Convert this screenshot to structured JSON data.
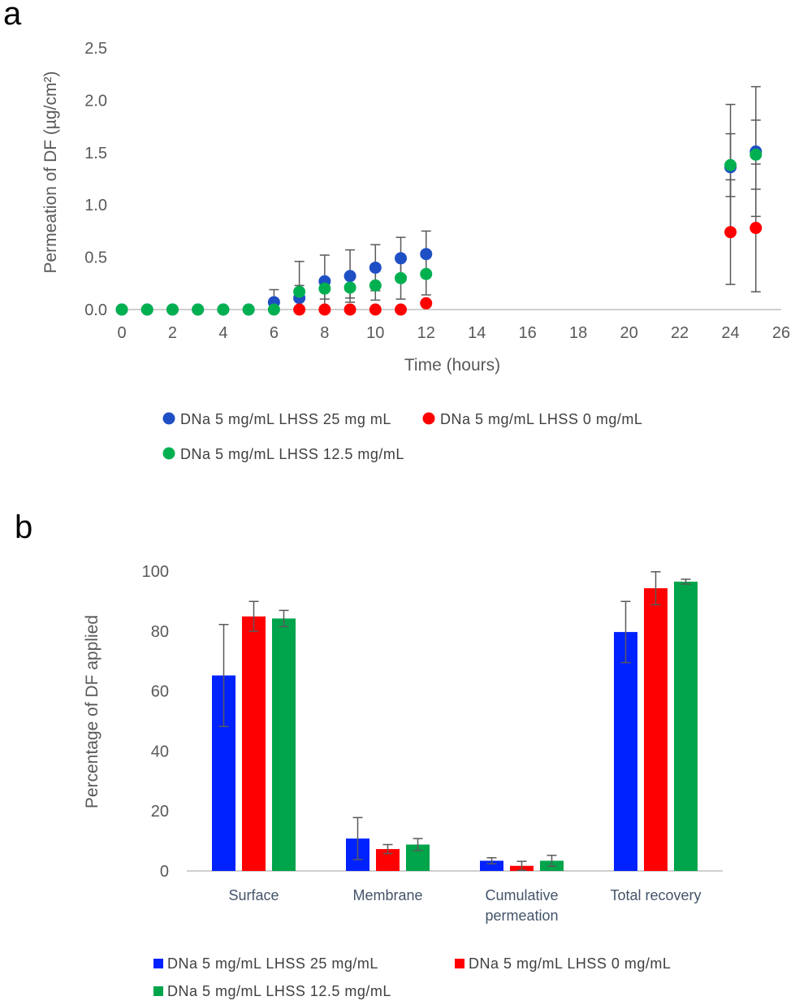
{
  "panels": {
    "a_label": "a",
    "b_label": "b"
  },
  "colors": {
    "series1": "#1f4fc4",
    "series2": "#ff0000",
    "series3": "#00b050",
    "bar_series1": "#0022ff",
    "bar_series2": "#ff0000",
    "bar_series3": "#00a44a",
    "axis": "#bfbfbf",
    "error_bar": "#595959"
  },
  "chart_data": [
    {
      "type": "scatter",
      "xlabel": "Time (hours)",
      "ylabel": "Permeation of DF (µg/cm²)",
      "xlim": [
        0,
        26
      ],
      "ylim": [
        0,
        2.5
      ],
      "x_ticks": [
        "0",
        "2",
        "4",
        "6",
        "8",
        "10",
        "12",
        "14",
        "16",
        "18",
        "20",
        "22",
        "24",
        "26"
      ],
      "y_ticks": [
        "0.0",
        "0.5",
        "1.0",
        "1.5",
        "2.0",
        "2.5"
      ],
      "legend_position": "bottom",
      "series": [
        {
          "name": "DNa 5 mg/mL LHSS 25 mg mL",
          "x": [
            0,
            1,
            2,
            3,
            4,
            5,
            6,
            7,
            8,
            9,
            10,
            11,
            12,
            24,
            25
          ],
          "y": [
            0,
            0,
            0,
            0,
            0,
            0,
            0.07,
            0.11,
            0.27,
            0.32,
            0.4,
            0.49,
            0.53,
            1.36,
            1.51
          ],
          "err": [
            0,
            0,
            0,
            0,
            0,
            0,
            0.12,
            0.35,
            0.25,
            0.25,
            0.22,
            0.2,
            0.22,
            0.6,
            0.62
          ]
        },
        {
          "name": "DNa 5 mg/mL LHSS 0 mg/mL",
          "x": [
            7,
            8,
            9,
            10,
            11,
            12,
            24,
            25
          ],
          "y": [
            0,
            0,
            0,
            0,
            0,
            0.06,
            0.74,
            0.78
          ],
          "err": [
            0,
            0,
            0,
            0,
            0,
            0,
            0.5,
            0.61
          ]
        },
        {
          "name": "DNa 5 mg/mL LHSS 12.5 mg/mL",
          "x": [
            0,
            1,
            2,
            3,
            4,
            5,
            6,
            7,
            8,
            9,
            10,
            11,
            12,
            24,
            25
          ],
          "y": [
            0,
            0,
            0,
            0,
            0,
            0,
            0,
            0.17,
            0.2,
            0.21,
            0.23,
            0.3,
            0.34,
            1.38,
            1.48
          ],
          "err": [
            0,
            0,
            0,
            0,
            0,
            0,
            0,
            0.06,
            0.1,
            0.1,
            0.14,
            0.2,
            0.2,
            0.3,
            0.33
          ]
        }
      ]
    },
    {
      "type": "bar",
      "ylabel": "Percentage of DF applied",
      "ylim": [
        0,
        100
      ],
      "y_ticks": [
        "0",
        "20",
        "40",
        "60",
        "80",
        "100"
      ],
      "categories": [
        "Surface",
        "Membrane",
        "Cumulative permeation",
        "Total recovery"
      ],
      "category_lines": [
        [
          "Surface"
        ],
        [
          "Membrane"
        ],
        [
          "Cumulative",
          "permeation"
        ],
        [
          "Total recovery"
        ]
      ],
      "legend_position": "bottom",
      "series": [
        {
          "name": "DNa 5 mg/mL  LHSS 25 mg/mL",
          "values": [
            65.2,
            10.8,
            3.4,
            79.7
          ],
          "err": [
            17.0,
            7.0,
            1.0,
            10.2
          ]
        },
        {
          "name": "DNa 5 mg/mL  LHSS 0 mg/mL",
          "values": [
            84.9,
            7.3,
            1.7,
            94.3
          ],
          "err": [
            5.0,
            1.5,
            1.5,
            5.5
          ]
        },
        {
          "name": "DNa 5 mg/mL  LHSS 12.5 mg/mL",
          "values": [
            84.2,
            8.8,
            3.4,
            96.5
          ],
          "err": [
            2.7,
            2.0,
            1.8,
            0.8
          ]
        }
      ]
    }
  ]
}
